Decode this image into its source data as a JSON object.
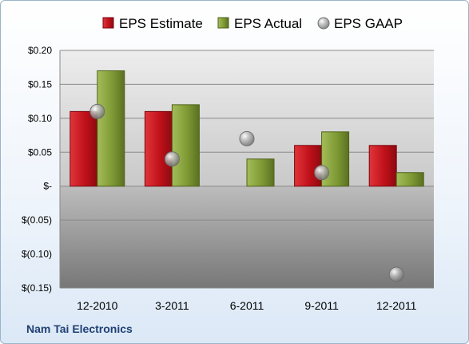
{
  "chart_data": {
    "type": "bar",
    "categories": [
      "12-2010",
      "3-2011",
      "6-2011",
      "9-2011",
      "12-2011"
    ],
    "series": [
      {
        "name": "EPS Estimate",
        "type": "bar",
        "color": "#c0111a",
        "values": [
          0.11,
          0.11,
          null,
          0.06,
          0.06
        ]
      },
      {
        "name": "EPS Actual",
        "type": "bar",
        "color": "#7f9a35",
        "values": [
          0.17,
          0.12,
          0.04,
          0.08,
          0.02
        ]
      },
      {
        "name": "EPS GAAP",
        "type": "scatter",
        "color": "#9a9a9a",
        "values": [
          0.11,
          0.04,
          0.07,
          0.02,
          -0.13
        ]
      }
    ],
    "y_ticks": [
      0.2,
      0.15,
      0.1,
      0.05,
      0,
      -0.05,
      -0.1,
      -0.15
    ],
    "y_tick_labels": [
      "$0.20",
      "$0.15",
      "$0.10",
      "$0.05",
      "$-",
      "$(0.05)",
      "$(0.10)",
      "$(0.15)"
    ],
    "ylim": [
      -0.15,
      0.2
    ],
    "grid": true,
    "legend_position": "top"
  },
  "footer": {
    "company": "Nam Tai Electronics"
  }
}
